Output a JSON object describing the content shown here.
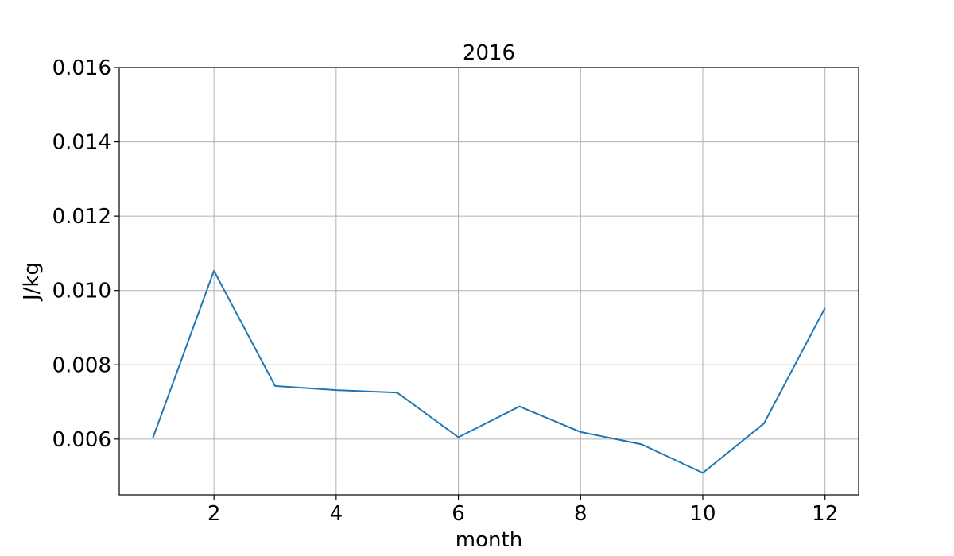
{
  "chart_data": {
    "type": "line",
    "title": "2016",
    "xlabel": "month",
    "ylabel": "J/kg",
    "xlim": [
      0.45,
      12.55
    ],
    "ylim": [
      0.0045,
      0.016
    ],
    "xticks": [
      2,
      4,
      6,
      8,
      10,
      12
    ],
    "xtick_labels": [
      "2",
      "4",
      "6",
      "8",
      "10",
      "12"
    ],
    "yticks": [
      0.006,
      0.008,
      0.01,
      0.012,
      0.014,
      0.016
    ],
    "ytick_labels": [
      "0.006",
      "0.008",
      "0.010",
      "0.012",
      "0.014",
      "0.016"
    ],
    "grid": true,
    "series": [
      {
        "color": "#1f77b4",
        "x": [
          1,
          2,
          3,
          4,
          5,
          6,
          7,
          8,
          9,
          10,
          11,
          12
        ],
        "y": [
          0.00603,
          0.01053,
          0.00743,
          0.00732,
          0.00725,
          0.00605,
          0.00688,
          0.00619,
          0.00586,
          0.00509,
          0.00642,
          0.00953
        ]
      }
    ]
  }
}
